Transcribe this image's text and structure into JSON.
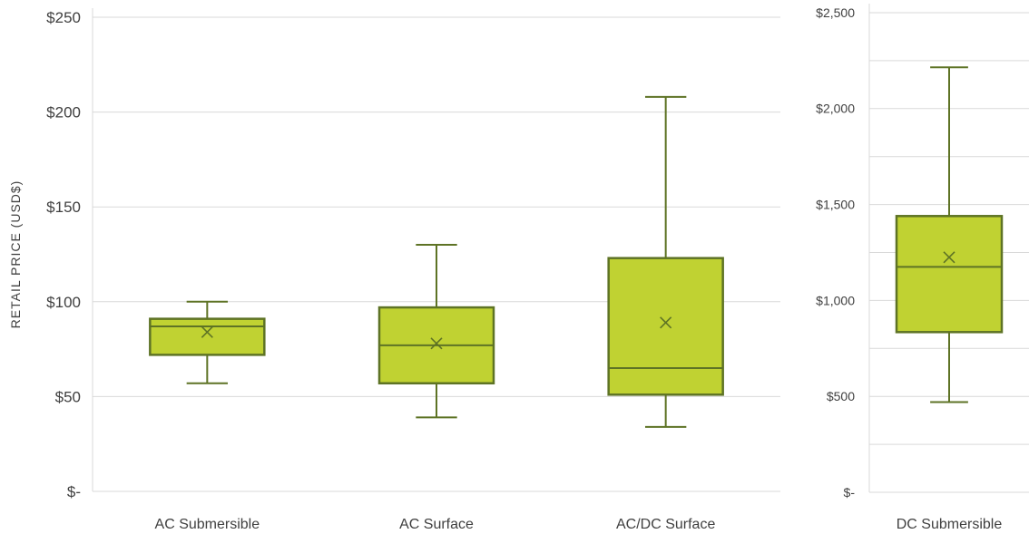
{
  "chart_data": [
    {
      "type": "box",
      "ylabel": "RETAIL PRICE (USD$)",
      "ylim": [
        0,
        250
      ],
      "y_ticks": [
        0,
        50,
        100,
        150,
        200,
        250
      ],
      "y_tick_labels": [
        "$-",
        "$50",
        "$100",
        "$150",
        "$200",
        "$250"
      ],
      "categories": [
        "AC Submersible",
        "AC Surface",
        "AC/DC Surface"
      ],
      "boxes": [
        {
          "min": 57,
          "q1": 72,
          "median": 87,
          "q3": 91,
          "max": 100,
          "mean": 84
        },
        {
          "min": 39,
          "q1": 57,
          "median": 77,
          "q3": 97,
          "max": 130,
          "mean": 78
        },
        {
          "min": 34,
          "q1": 51,
          "median": 65,
          "q3": 123,
          "max": 208,
          "mean": 89
        }
      ],
      "grid": true
    },
    {
      "type": "box",
      "ylim": [
        0,
        2500
      ],
      "y_ticks": [
        0,
        500,
        1000,
        1500,
        2000,
        2500
      ],
      "y_tick_labels": [
        "$-",
        "$500",
        "$1,000",
        "$1,500",
        "$2,000",
        "$2,500"
      ],
      "categories": [
        "DC Submersible"
      ],
      "boxes": [
        {
          "min": 470,
          "q1": 835,
          "median": 1175,
          "q3": 1440,
          "max": 2215,
          "mean": 1225
        }
      ],
      "grid": true
    }
  ],
  "colors": {
    "box_fill": "#c0d232",
    "box_stroke": "#5e7325",
    "grid": "#d9d9d9",
    "text": "#404040"
  }
}
